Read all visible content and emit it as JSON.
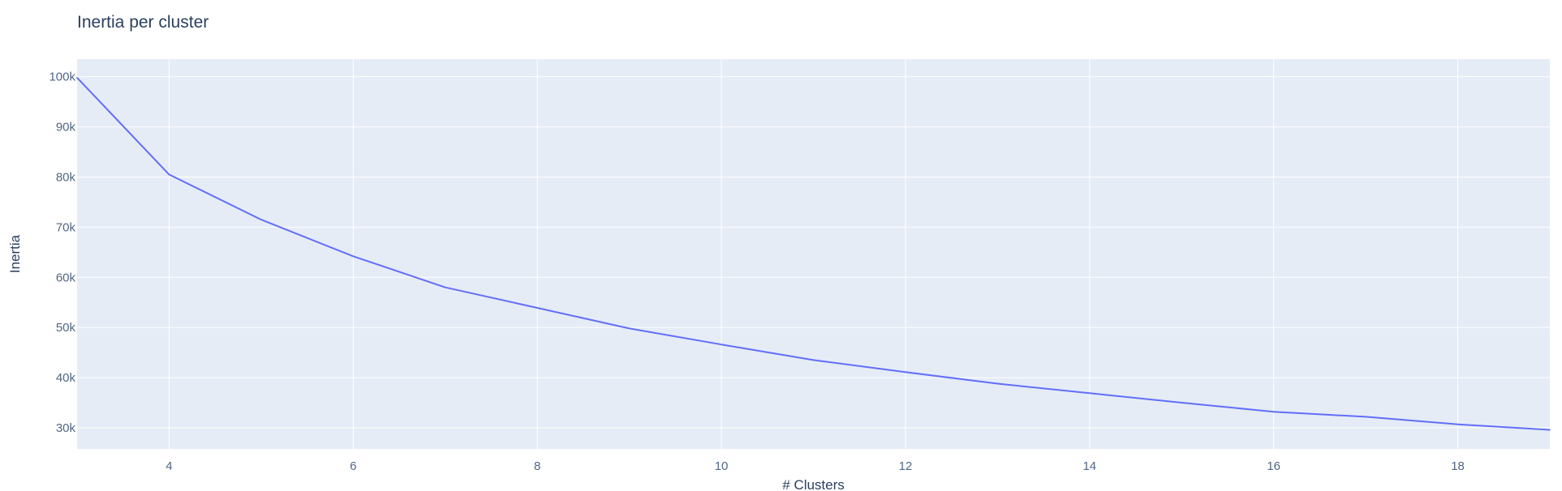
{
  "chart_data": {
    "type": "line",
    "title": "Inertia per cluster",
    "xlabel": "# Clusters",
    "ylabel": "Inertia",
    "xlim": [
      3,
      19
    ],
    "ylim": [
      25800,
      103500
    ],
    "x_ticks": [
      4,
      6,
      8,
      10,
      12,
      14,
      16,
      18
    ],
    "x_tick_labels": [
      "4",
      "6",
      "8",
      "10",
      "12",
      "14",
      "16",
      "18"
    ],
    "y_ticks": [
      30000,
      40000,
      50000,
      60000,
      70000,
      80000,
      90000,
      100000
    ],
    "y_tick_labels": [
      "30k",
      "40k",
      "50k",
      "60k",
      "70k",
      "80k",
      "90k",
      "100k"
    ],
    "grid": true,
    "colors": {
      "line": "#636efa",
      "plot_background": "#e5ecf6",
      "grid": "#ffffff"
    },
    "series": [
      {
        "x": [
          3,
          4,
          5,
          6,
          7,
          8,
          9,
          10,
          11,
          12,
          13,
          14,
          15,
          16,
          17,
          18,
          19
        ],
        "y": [
          99800,
          80500,
          71500,
          64200,
          58000,
          53900,
          49800,
          46600,
          43500,
          41100,
          38800,
          36900,
          35000,
          33200,
          32200,
          30700,
          29600
        ]
      }
    ]
  }
}
